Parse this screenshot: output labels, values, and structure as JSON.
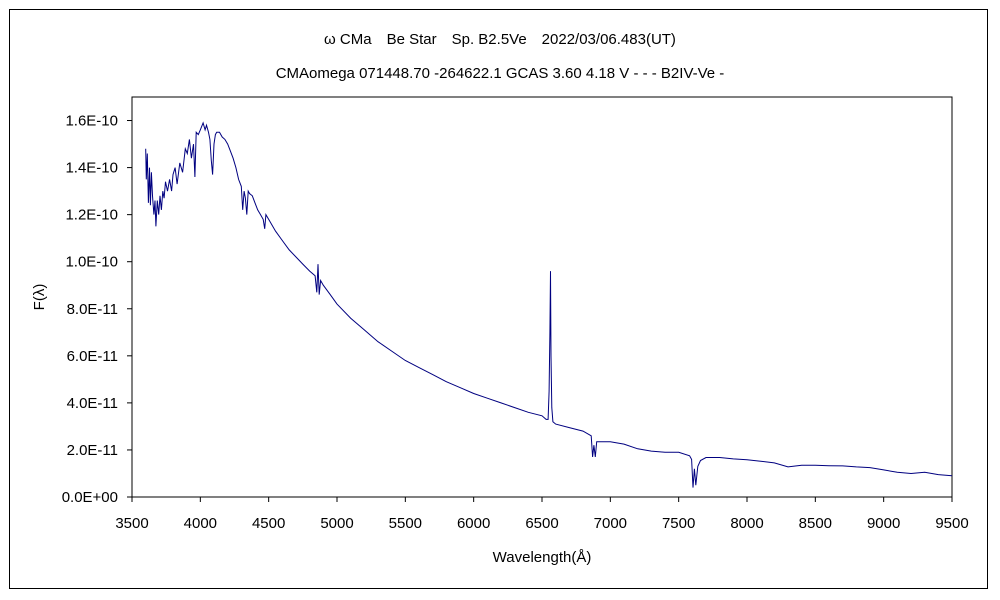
{
  "chart_data": {
    "type": "line",
    "title": "ω CMa　Be Star　Sp. B2.5Ve　2022/03/06.483(UT)",
    "subtitle": "CMAomega 071448.70 -264622.1 GCAS 3.60 4.18 V - - - B2IV-Ve -",
    "xlabel": "Wavelength(Å)",
    "ylabel": "F(λ)",
    "xlim": [
      3500,
      9500
    ],
    "ylim": [
      0,
      1.7e-10
    ],
    "x_ticks": [
      3500,
      4000,
      4500,
      5000,
      5500,
      6000,
      6500,
      7000,
      7500,
      8000,
      8500,
      9000,
      9500
    ],
    "x_tick_labels": [
      "3500",
      "4000",
      "4500",
      "5000",
      "5500",
      "6000",
      "6500",
      "7000",
      "7500",
      "8000",
      "8500",
      "9000",
      "9500"
    ],
    "y_ticks": [
      0,
      2e-11,
      4e-11,
      6e-11,
      8e-11,
      1e-10,
      1.2e-10,
      1.4e-10,
      1.6e-10
    ],
    "y_tick_labels": [
      "0.0E+00",
      "2.0E-11",
      "4.0E-11",
      "6.0E-11",
      "8.0E-11",
      "1.0E-10",
      "1.2E-10",
      "1.4E-10",
      "1.6E-10"
    ],
    "grid": false,
    "legend": "none",
    "line_color": "#000080",
    "series": [
      {
        "x": [
          3600,
          3605,
          3612,
          3620,
          3628,
          3635,
          3642,
          3650,
          3660,
          3668,
          3675,
          3685,
          3695,
          3705,
          3715,
          3725,
          3735,
          3745,
          3760,
          3775,
          3790,
          3800,
          3815,
          3830,
          3850,
          3870,
          3890,
          3905,
          3920,
          3935,
          3950,
          3960,
          3970,
          3985,
          4000,
          4020,
          4035,
          4045,
          4060,
          4070,
          4080,
          4090,
          4100,
          4110,
          4120,
          4140,
          4160,
          4180,
          4200,
          4220,
          4240,
          4260,
          4280,
          4300,
          4310,
          4320,
          4330,
          4340,
          4350,
          4360,
          4380,
          4400,
          4420,
          4440,
          4460,
          4471,
          4480,
          4500,
          4550,
          4600,
          4650,
          4700,
          4750,
          4800,
          4840,
          4852,
          4861,
          4870,
          4880,
          4900,
          4950,
          5000,
          5100,
          5200,
          5300,
          5400,
          5500,
          5600,
          5700,
          5800,
          5900,
          6000,
          6100,
          6200,
          6300,
          6400,
          6500,
          6530,
          6545,
          6552,
          6558,
          6562,
          6566,
          6572,
          6580,
          6600,
          6700,
          6800,
          6860,
          6870,
          6880,
          6890,
          6900,
          7000,
          7100,
          7200,
          7300,
          7400,
          7500,
          7580,
          7595,
          7605,
          7615,
          7625,
          7640,
          7660,
          7700,
          7800,
          7900,
          8000,
          8100,
          8200,
          8300,
          8400,
          8500,
          8600,
          8700,
          8800,
          8900,
          9000,
          9100,
          9200,
          9300,
          9400,
          9500
        ],
        "y": [
          1.48e-10,
          1.35e-10,
          1.46e-10,
          1.25e-10,
          1.4e-10,
          1.24e-10,
          1.38e-10,
          1.28e-10,
          1.2e-10,
          1.26e-10,
          1.15e-10,
          1.26e-10,
          1.2e-10,
          1.28e-10,
          1.22e-10,
          1.3e-10,
          1.27e-10,
          1.34e-10,
          1.3e-10,
          1.35e-10,
          1.3e-10,
          1.37e-10,
          1.4e-10,
          1.33e-10,
          1.42e-10,
          1.38e-10,
          1.48e-10,
          1.46e-10,
          1.52e-10,
          1.44e-10,
          1.5e-10,
          1.36e-10,
          1.55e-10,
          1.54e-10,
          1.56e-10,
          1.59e-10,
          1.56e-10,
          1.58e-10,
          1.55e-10,
          1.52e-10,
          1.43e-10,
          1.37e-10,
          1.5e-10,
          1.54e-10,
          1.55e-10,
          1.55e-10,
          1.53e-10,
          1.52e-10,
          1.5e-10,
          1.47e-10,
          1.44e-10,
          1.4e-10,
          1.35e-10,
          1.32e-10,
          1.22e-10,
          1.3e-10,
          1.27e-10,
          1.2e-10,
          1.3e-10,
          1.29e-10,
          1.28e-10,
          1.25e-10,
          1.22e-10,
          1.2e-10,
          1.18e-10,
          1.14e-10,
          1.2e-10,
          1.18e-10,
          1.13e-10,
          1.09e-10,
          1.05e-10,
          1.02e-10,
          9.9e-11,
          9.6e-11,
          9.4e-11,
          8.7e-11,
          9.9e-11,
          8.6e-11,
          9.2e-11,
          9e-11,
          8.6e-11,
          8.2e-11,
          7.6e-11,
          7.1e-11,
          6.6e-11,
          6.2e-11,
          5.8e-11,
          5.5e-11,
          5.2e-11,
          4.9e-11,
          4.65e-11,
          4.4e-11,
          4.2e-11,
          4e-11,
          3.8e-11,
          3.6e-11,
          3.45e-11,
          3.3e-11,
          3.3e-11,
          4.5e-11,
          7e-11,
          9.6e-11,
          6e-11,
          3.8e-11,
          3.2e-11,
          3.1e-11,
          2.95e-11,
          2.8e-11,
          2.6e-11,
          1.7e-11,
          2.2e-11,
          1.7e-11,
          2.35e-11,
          2.35e-11,
          2.25e-11,
          2.05e-11,
          1.95e-11,
          1.9e-11,
          1.9e-11,
          1.75e-11,
          1.6e-11,
          4e-12,
          1.2e-11,
          5e-12,
          1.3e-11,
          1.55e-11,
          1.68e-11,
          1.68e-11,
          1.62e-11,
          1.58e-11,
          1.52e-11,
          1.45e-11,
          1.28e-11,
          1.35e-11,
          1.35e-11,
          1.33e-11,
          1.32e-11,
          1.28e-11,
          1.25e-11,
          1.15e-11,
          1.05e-11,
          1e-11,
          1.05e-11,
          9.5e-12,
          9e-12
        ]
      }
    ]
  }
}
